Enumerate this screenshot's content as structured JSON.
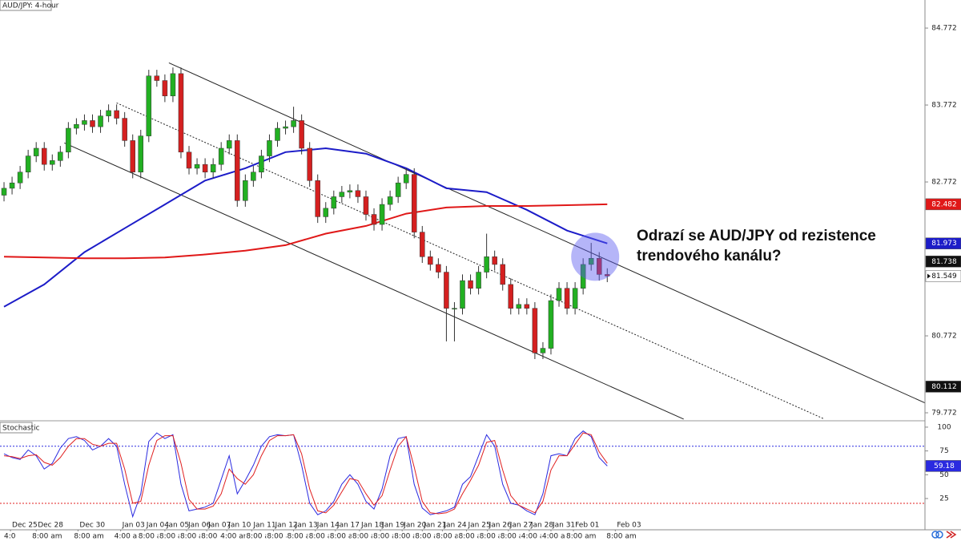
{
  "chart_data": [
    {
      "type": "candlestick",
      "title": "AUD/JPY: 4-hour",
      "open": [
        82.6,
        82.69,
        82.76,
        82.9,
        83.11,
        83.21,
        83.0,
        83.05,
        83.16,
        83.47,
        83.52,
        83.57,
        83.49,
        83.63,
        83.7,
        83.6,
        83.31,
        82.9,
        83.37,
        84.15,
        84.09,
        83.89,
        84.18,
        83.16,
        82.95,
        83.0,
        82.9,
        83.0,
        83.21,
        83.31,
        82.53,
        82.79,
        82.9,
        83.11,
        83.31,
        83.47,
        83.49,
        83.57,
        83.21,
        82.79,
        82.32,
        82.43,
        82.58,
        82.64,
        82.66,
        82.58,
        82.35,
        82.22,
        82.48,
        82.58,
        82.76,
        82.87,
        82.12,
        81.8,
        81.7,
        81.6,
        81.13,
        81.13,
        81.49,
        81.39,
        81.6,
        81.8,
        81.7,
        81.44,
        81.13,
        81.18,
        81.13,
        80.55,
        80.61,
        81.23,
        81.39,
        81.13,
        81.39,
        81.7,
        81.78,
        81.57
      ],
      "high": [
        82.77,
        82.84,
        82.98,
        83.19,
        83.29,
        83.29,
        83.13,
        83.24,
        83.55,
        83.6,
        83.65,
        83.65,
        83.71,
        83.78,
        83.78,
        83.68,
        83.39,
        83.45,
        84.23,
        84.23,
        84.17,
        84.26,
        84.26,
        83.24,
        83.08,
        83.08,
        83.08,
        83.29,
        83.39,
        83.39,
        82.87,
        82.98,
        83.19,
        83.39,
        83.55,
        83.57,
        83.75,
        83.65,
        83.29,
        82.87,
        82.51,
        82.66,
        82.72,
        82.74,
        82.74,
        82.66,
        82.43,
        82.56,
        82.66,
        82.84,
        82.95,
        82.95,
        82.2,
        81.88,
        81.78,
        81.68,
        81.21,
        81.57,
        81.57,
        81.68,
        82.1,
        81.88,
        81.78,
        81.52,
        81.26,
        81.26,
        81.21,
        80.69,
        81.31,
        81.47,
        81.47,
        81.47,
        81.78,
        81.98,
        81.86,
        81.65
      ],
      "low": [
        82.52,
        82.61,
        82.68,
        82.82,
        83.03,
        82.92,
        82.92,
        82.97,
        83.08,
        83.39,
        83.44,
        83.41,
        83.41,
        83.55,
        83.52,
        83.23,
        82.82,
        82.82,
        83.29,
        84.01,
        83.81,
        83.81,
        83.08,
        82.87,
        82.87,
        82.82,
        82.82,
        82.92,
        83.13,
        82.45,
        82.45,
        82.71,
        82.82,
        83.03,
        83.23,
        83.39,
        83.41,
        83.13,
        82.71,
        82.24,
        82.24,
        82.35,
        82.5,
        82.56,
        82.5,
        82.27,
        82.14,
        82.14,
        82.4,
        82.5,
        82.68,
        82.04,
        81.72,
        81.62,
        81.52,
        80.7,
        80.7,
        81.05,
        81.31,
        81.31,
        81.52,
        81.62,
        81.36,
        81.05,
        81.05,
        81.05,
        80.47,
        80.47,
        80.53,
        81.15,
        81.05,
        81.05,
        81.31,
        81.62,
        81.49,
        81.47
      ],
      "close": [
        82.69,
        82.76,
        82.9,
        83.11,
        83.21,
        83.0,
        83.05,
        83.16,
        83.47,
        83.52,
        83.57,
        83.49,
        83.63,
        83.7,
        83.6,
        83.31,
        82.9,
        83.37,
        84.15,
        84.09,
        83.89,
        84.18,
        83.16,
        82.95,
        83.0,
        82.9,
        83.0,
        83.21,
        83.31,
        82.53,
        82.79,
        82.9,
        83.11,
        83.31,
        83.47,
        83.49,
        83.57,
        83.21,
        82.79,
        82.32,
        82.43,
        82.58,
        82.64,
        82.66,
        82.58,
        82.35,
        82.22,
        82.48,
        82.58,
        82.76,
        82.87,
        82.12,
        81.8,
        81.7,
        81.6,
        81.13,
        81.13,
        81.49,
        81.39,
        81.6,
        81.8,
        81.7,
        81.44,
        81.13,
        81.18,
        81.13,
        80.55,
        80.61,
        81.23,
        81.39,
        81.13,
        81.39,
        81.7,
        81.78,
        81.57,
        81.55
      ],
      "up_color": "#22b022",
      "down_color": "#d42020",
      "lines": [
        {
          "color": "#1c1cc8",
          "x": [
            0,
            5,
            10,
            15,
            20,
            25,
            30,
            35,
            40,
            45,
            50,
            55,
            60,
            65,
            70,
            75
          ],
          "values": [
            81.15,
            81.44,
            81.86,
            82.17,
            82.48,
            82.79,
            82.95,
            83.16,
            83.21,
            83.14,
            82.95,
            82.69,
            82.64,
            82.41,
            82.14,
            81.973
          ]
        },
        {
          "color": "#e01818",
          "x": [
            0,
            5,
            10,
            15,
            20,
            25,
            30,
            35,
            40,
            45,
            50,
            55,
            60,
            65,
            70,
            75
          ],
          "values": [
            81.8,
            81.79,
            81.78,
            81.78,
            81.79,
            81.83,
            81.88,
            81.95,
            82.1,
            82.2,
            82.36,
            82.44,
            82.46,
            82.46,
            82.47,
            82.482
          ]
        }
      ],
      "channels": [
        {
          "x": [
            20.5,
            114.5
          ],
          "values": [
            84.32,
            79.9
          ],
          "dashed": false
        },
        {
          "x": [
            14,
            102
          ],
          "values": [
            83.8,
            79.69
          ],
          "dashed": true
        },
        {
          "x": [
            7.5,
            84.5
          ],
          "values": [
            83.28,
            79.69
          ],
          "dashed": false
        }
      ],
      "highlight": {
        "x": 73.5,
        "y": 81.8,
        "color": "rgba(90,90,240,0.45)"
      },
      "annotation": [
        "Odrazí se AUD/JPY od rezistence",
        "trendového kanálu?"
      ],
      "markers": [
        {
          "value": 82.482,
          "color": "#e01818",
          "text_color": "#ffffff"
        },
        {
          "value": 81.973,
          "color": "#1c1cc8",
          "text_color": "#ffffff"
        },
        {
          "value": 81.738,
          "color": "#111111",
          "text_color": "#ffffff"
        },
        {
          "value": 81.549,
          "color": "#ffffff",
          "text_color": "#111111"
        },
        {
          "value": 80.112,
          "color": "#111111",
          "text_color": "#ffffff"
        }
      ],
      "xlim": [
        -0.5,
        114.5
      ],
      "ylim": [
        79.689,
        85.137
      ],
      "yticks": [
        79.772,
        80.772,
        82.772,
        83.772,
        84.772
      ]
    },
    {
      "type": "stochastic",
      "title": "Stochastic",
      "series": [
        {
          "color": "#2a2ae0",
          "values": [
            72,
            68,
            66,
            76,
            70,
            56,
            62,
            78,
            88,
            90,
            86,
            76,
            80,
            88,
            80,
            40,
            6,
            30,
            85,
            94,
            88,
            92,
            40,
            12,
            14,
            16,
            20,
            45,
            70,
            30,
            44,
            60,
            80,
            90,
            92,
            91,
            92,
            60,
            20,
            8,
            12,
            22,
            40,
            50,
            40,
            22,
            14,
            35,
            70,
            88,
            90,
            40,
            15,
            8,
            10,
            12,
            16,
            40,
            48,
            70,
            92,
            80,
            40,
            20,
            18,
            12,
            8,
            30,
            70,
            72,
            70,
            88,
            96,
            90,
            68,
            59.18
          ]
        },
        {
          "color": "#e02020",
          "values": [
            70,
            69,
            67,
            70,
            71,
            63,
            60,
            68,
            80,
            88,
            88,
            82,
            80,
            83,
            83,
            56,
            20,
            22,
            60,
            86,
            91,
            91,
            62,
            24,
            14,
            14,
            17,
            30,
            56,
            46,
            40,
            50,
            70,
            86,
            91,
            91,
            92,
            72,
            35,
            12,
            10,
            18,
            32,
            46,
            44,
            30,
            18,
            28,
            55,
            80,
            90,
            58,
            22,
            10,
            9,
            10,
            14,
            30,
            44,
            60,
            84,
            86,
            55,
            28,
            18,
            14,
            10,
            22,
            55,
            70,
            70,
            82,
            94,
            92,
            74,
            62
          ]
        }
      ],
      "levels": [
        {
          "value": 80,
          "color": "#2a2ae0"
        },
        {
          "value": 20,
          "color": "#e02020"
        }
      ],
      "markers": [
        {
          "value": 59.18,
          "color": "#2a2ae0",
          "text_color": "#ffffff"
        }
      ],
      "xlim": [
        -0.5,
        114.5
      ],
      "ylim": [
        -7,
        105
      ],
      "yticks": [
        25,
        50,
        75,
        100
      ],
      "xticks": [
        {
          "value": 0.8,
          "label": "Dec 25"
        },
        {
          "value": 4,
          "label": "Dec 28"
        },
        {
          "value": 9.2,
          "label": "Dec 30"
        },
        {
          "value": 14.5,
          "label": "Jan 03"
        },
        {
          "value": 17.5,
          "label": "Jan 04"
        },
        {
          "value": 20,
          "label": "Jan 05"
        },
        {
          "value": 22.7,
          "label": "Jan 06"
        },
        {
          "value": 25.2,
          "label": "Jan 07"
        },
        {
          "value": 27.7,
          "label": "Jan 10"
        },
        {
          "value": 30.8,
          "label": "Jan 11"
        },
        {
          "value": 33.5,
          "label": "Jan 12"
        },
        {
          "value": 36,
          "label": "Jan 13"
        },
        {
          "value": 38.7,
          "label": "Jan 14"
        },
        {
          "value": 41.2,
          "label": "Jan 17"
        },
        {
          "value": 44.2,
          "label": "Jan 18"
        },
        {
          "value": 46.8,
          "label": "Jan 19"
        },
        {
          "value": 49.5,
          "label": "Jan 20"
        },
        {
          "value": 52,
          "label": "Jan 21"
        },
        {
          "value": 54.5,
          "label": "Jan 24"
        },
        {
          "value": 57.5,
          "label": "Jan 25"
        },
        {
          "value": 60.1,
          "label": "Jan 26"
        },
        {
          "value": 62.7,
          "label": "Jan 27"
        },
        {
          "value": 65.3,
          "label": "Jan 28"
        },
        {
          "value": 68,
          "label": "Jan 31"
        },
        {
          "value": 70.8,
          "label": "Feb 01"
        },
        {
          "value": 76,
          "label": "Feb 03"
        }
      ],
      "xtime_ticks": [
        {
          "value": -0.2,
          "label": "4:0"
        },
        {
          "value": 3.3,
          "label": "8:00 am"
        },
        {
          "value": 8.5,
          "label": "8:00 am"
        },
        {
          "value": 13.5,
          "label": "4:00 am"
        },
        {
          "value": 16.5,
          "label": "8:00 am"
        },
        {
          "value": 19.1,
          "label": "8:00 am"
        },
        {
          "value": 21.7,
          "label": "8:00 am"
        },
        {
          "value": 24.3,
          "label": "8:00 am"
        },
        {
          "value": 26.7,
          "label": "4:00 am"
        },
        {
          "value": 29.9,
          "label": "8:00 am"
        },
        {
          "value": 32.5,
          "label": "8:00 am"
        },
        {
          "value": 35,
          "label": "8:00 am"
        },
        {
          "value": 37.7,
          "label": "8:00 am"
        },
        {
          "value": 40.3,
          "label": "8:00 am"
        },
        {
          "value": 43.1,
          "label": "8:00 am"
        },
        {
          "value": 45.7,
          "label": "8:00 am"
        },
        {
          "value": 48.3,
          "label": "8:00 am"
        },
        {
          "value": 50.9,
          "label": "8:00 am"
        },
        {
          "value": 53.5,
          "label": "8:00 am"
        },
        {
          "value": 56.3,
          "label": "8:00 am"
        },
        {
          "value": 58.9,
          "label": "8:00 am"
        },
        {
          "value": 61.5,
          "label": "8:00 am"
        },
        {
          "value": 64.1,
          "label": "4:00 am"
        },
        {
          "value": 66.7,
          "label": "4:00 am"
        },
        {
          "value": 69.7,
          "label": "8:00 am"
        },
        {
          "value": 74.7,
          "label": "8:00 am"
        }
      ]
    }
  ]
}
